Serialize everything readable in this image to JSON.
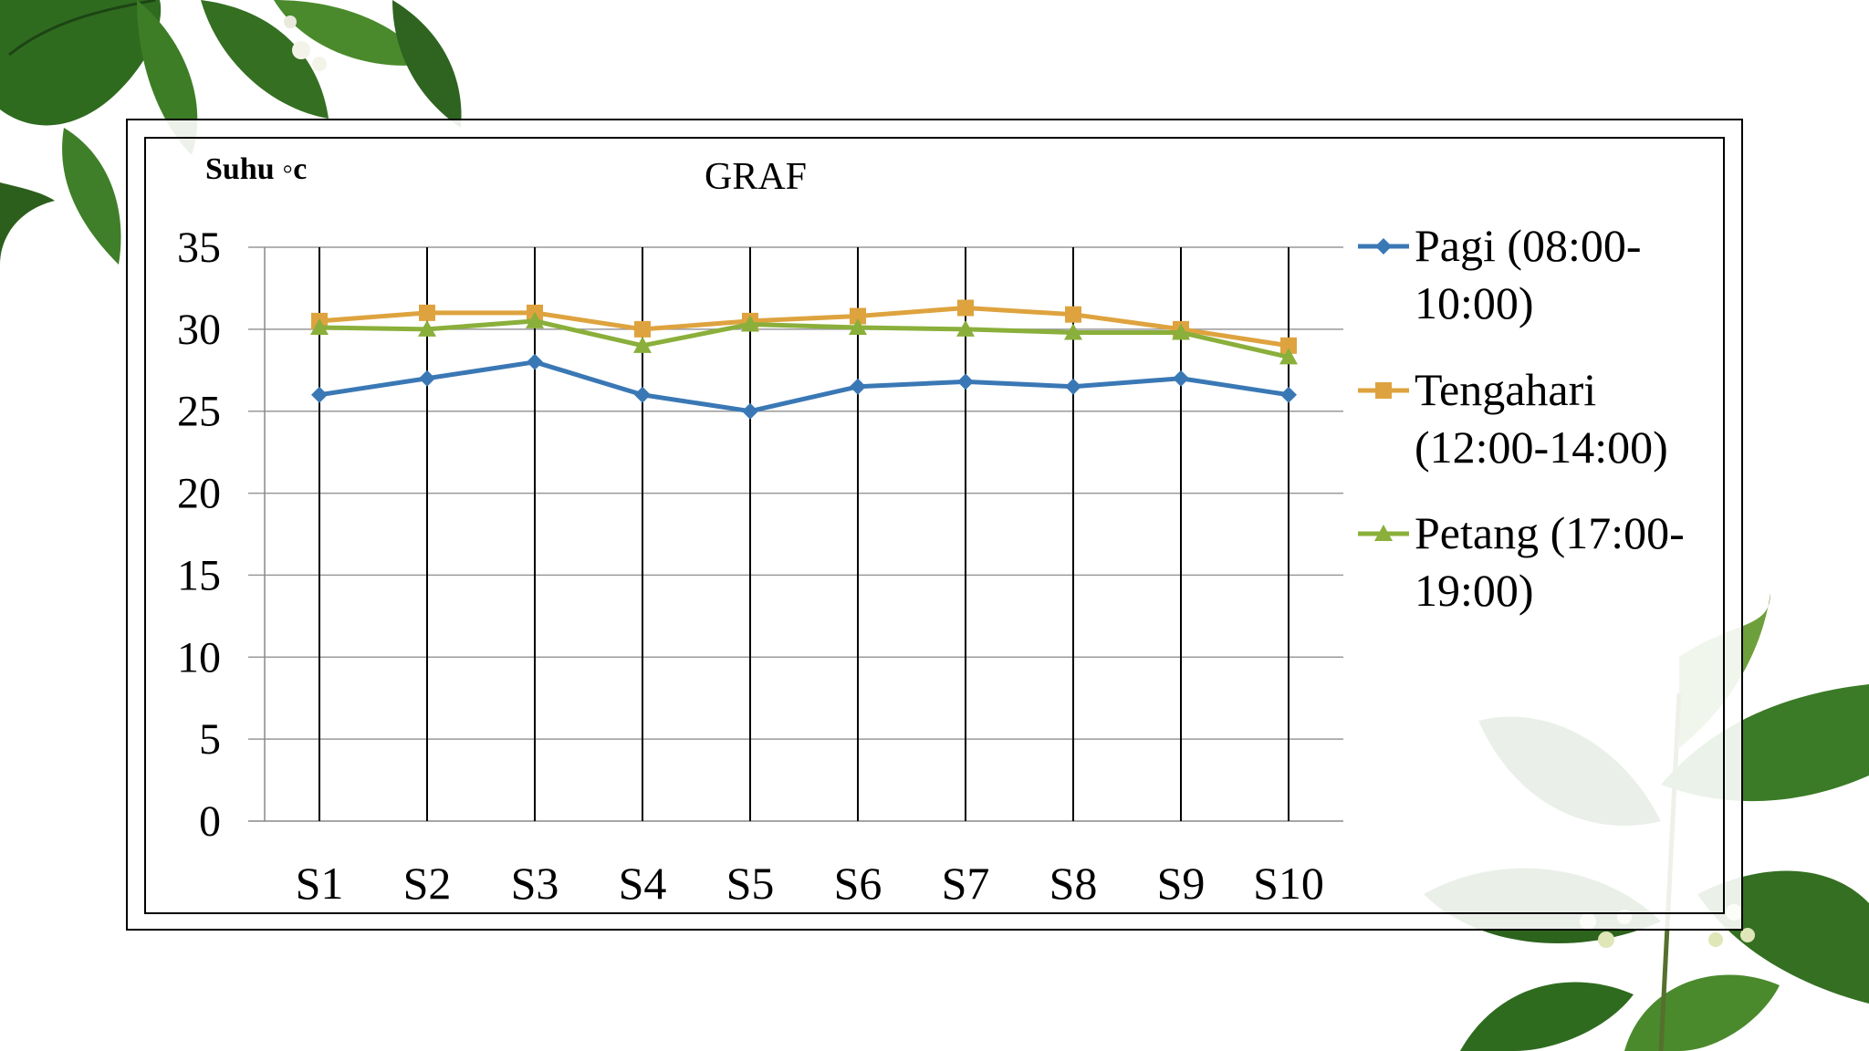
{
  "slide": {
    "background_color": "#ffffff",
    "decoration_icons": [
      "leaf-branch-top-left",
      "leaf-branch-bottom-right"
    ]
  },
  "chart_data": {
    "type": "line",
    "title": "GRAF",
    "ylabel": "Suhu ◦c",
    "xlabel": "",
    "categories": [
      "S1",
      "S2",
      "S3",
      "S4",
      "S5",
      "S6",
      "S7",
      "S8",
      "S9",
      "S10"
    ],
    "ylim": [
      0,
      35
    ],
    "yticks": [
      "0",
      "5",
      "10",
      "15",
      "20",
      "25",
      "30",
      "35"
    ],
    "grid": true,
    "legend_position": "right",
    "series": [
      {
        "name": "Pagi (08:00-10:00)",
        "legend_lines": [
          "Pagi (08:00-",
          "10:00)"
        ],
        "marker": "diamond",
        "color": "#3a78b5",
        "values": [
          26,
          27,
          28,
          26,
          25,
          26.5,
          26.8,
          26.5,
          27,
          26
        ]
      },
      {
        "name": "Tengahari (12:00-14:00)",
        "legend_lines": [
          "Tengahari",
          "(12:00-14:00)"
        ],
        "marker": "square",
        "color": "#dea33f",
        "values": [
          30.5,
          31,
          31,
          30,
          30.5,
          30.8,
          31.3,
          30.9,
          30,
          29
        ]
      },
      {
        "name": "Petang (17:00-19:00)",
        "legend_lines": [
          "Petang (17:00-",
          "19:00)"
        ],
        "marker": "triangle",
        "color": "#8aaf3b",
        "values": [
          30.1,
          30,
          30.5,
          29,
          30.3,
          30.1,
          30,
          29.8,
          29.8,
          28.3
        ]
      }
    ]
  }
}
